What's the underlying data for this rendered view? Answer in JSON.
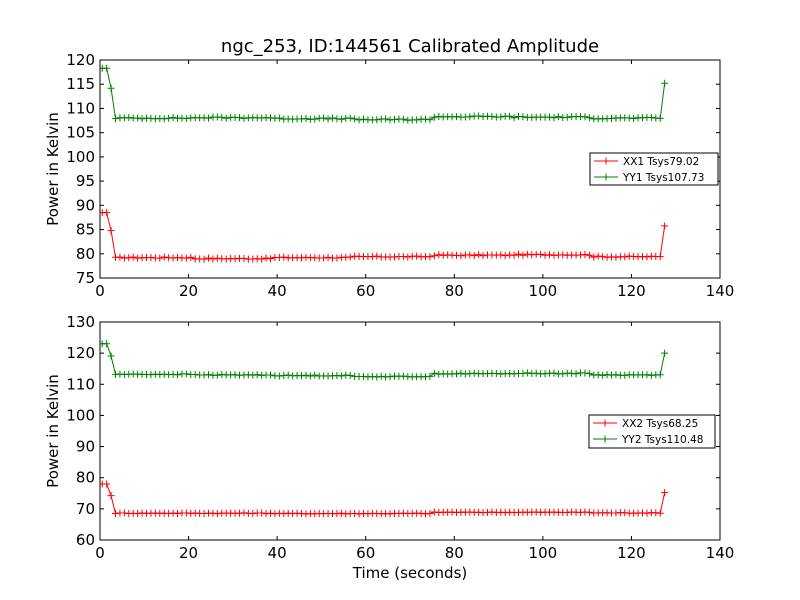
{
  "title": "ngc_253, ID:144561 Calibrated Amplitude",
  "colors": {
    "red": "#ff0000",
    "green": "#008000",
    "axis": "#000000"
  },
  "chart_data": [
    {
      "type": "line",
      "title": "ngc_253, ID:144561 Calibrated Amplitude",
      "xlabel": "",
      "ylabel": "Power in Kelvin",
      "xlim": [
        0,
        140
      ],
      "ylim": [
        75,
        120
      ],
      "xticks": [
        0,
        20,
        40,
        60,
        80,
        100,
        120,
        140
      ],
      "yticks": [
        75,
        80,
        85,
        90,
        95,
        100,
        105,
        110,
        115,
        120
      ],
      "legend_position": "right",
      "series": [
        {
          "name": "XX1 Tsys79.02",
          "color": "#ff0000",
          "x_start": 0.5,
          "x_step": 1,
          "count": 128,
          "edge_value": 88.5,
          "plateau_values": [
            79.2,
            79.0,
            79.2,
            79.4,
            79.7,
            79.8,
            79.4
          ],
          "noise": 0.12
        },
        {
          "name": "YY1 Tsys107.73",
          "color": "#008000",
          "x_start": 0.5,
          "x_step": 1,
          "count": 128,
          "edge_value": 118.3,
          "plateau_values": [
            108.0,
            108.1,
            107.9,
            107.7,
            108.3,
            108.2,
            108.0
          ],
          "noise": 0.15
        }
      ]
    },
    {
      "type": "line",
      "title": "",
      "xlabel": "Time (seconds)",
      "ylabel": "Power in Kelvin",
      "xlim": [
        0,
        140
      ],
      "ylim": [
        60,
        130
      ],
      "xticks": [
        0,
        20,
        40,
        60,
        80,
        100,
        120,
        140
      ],
      "yticks": [
        60,
        70,
        80,
        90,
        100,
        110,
        120,
        130
      ],
      "legend_position": "right",
      "series": [
        {
          "name": "XX2 Tsys68.25",
          "color": "#ff0000",
          "x_start": 0.5,
          "x_step": 1,
          "count": 128,
          "edge_value": 78.0,
          "plateau_values": [
            68.6,
            68.6,
            68.5,
            68.5,
            68.9,
            68.9,
            68.7
          ],
          "noise": 0.12
        },
        {
          "name": "YY2 Tsys110.48",
          "color": "#008000",
          "x_start": 0.5,
          "x_step": 1,
          "count": 128,
          "edge_value": 123.0,
          "plateau_values": [
            113.2,
            113.0,
            112.8,
            112.5,
            113.4,
            113.5,
            113.0
          ],
          "noise": 0.15
        }
      ]
    }
  ]
}
